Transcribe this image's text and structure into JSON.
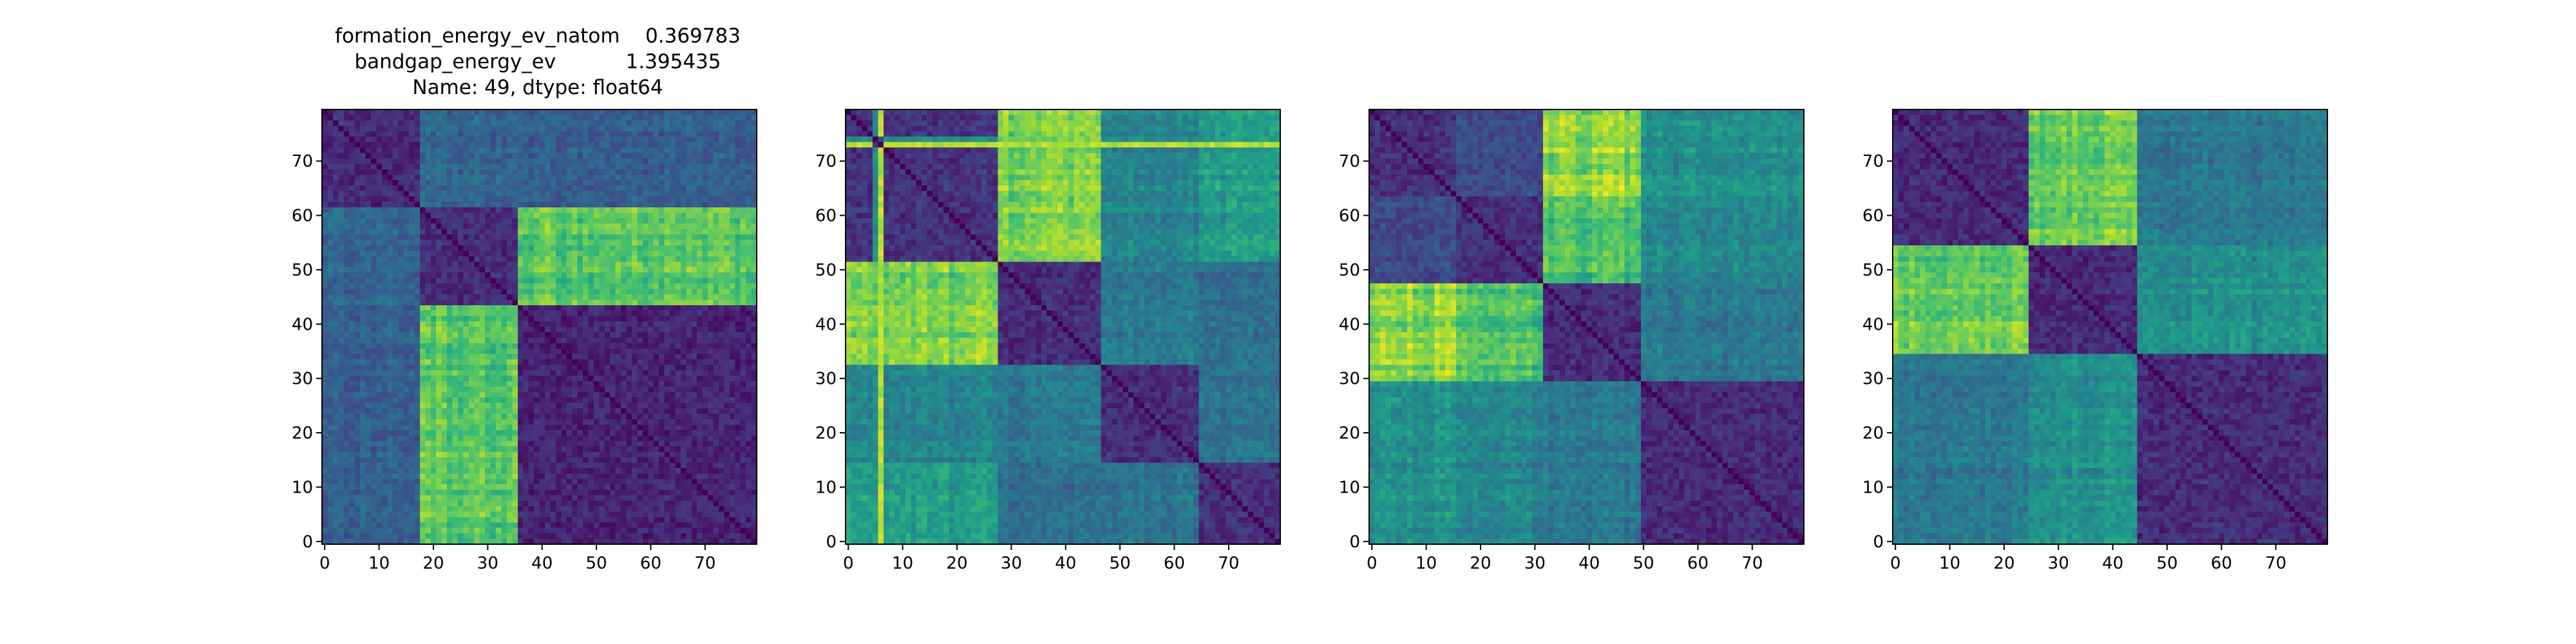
{
  "figure": {
    "title_lines": [
      "formation_energy_ev_natom    0.369783",
      "bandgap_energy_ev           1.395435",
      "Name: 49, dtype: float64"
    ]
  },
  "chart_data": [
    {
      "type": "heatmap",
      "title": "",
      "n": 80,
      "xticks": [
        0,
        10,
        20,
        30,
        40,
        50,
        60,
        70
      ],
      "yticks": [
        0,
        10,
        20,
        30,
        40,
        50,
        60,
        70
      ],
      "xlim": [
        -0.5,
        79.5
      ],
      "ylim": [
        79.5,
        -0.5
      ],
      "colormap": "viridis",
      "blocks": [
        {
          "start": 0,
          "end": 18
        },
        {
          "start": 18,
          "end": 36
        },
        {
          "start": 36,
          "end": 80
        }
      ],
      "block_distance": [
        [
          0.12,
          0.32,
          0.3
        ],
        [
          0.32,
          0.12,
          0.72
        ],
        [
          0.3,
          0.72,
          0.1
        ]
      ],
      "special_rows": []
    },
    {
      "type": "heatmap",
      "title": "",
      "n": 80,
      "xticks": [
        0,
        10,
        20,
        30,
        40,
        50,
        60,
        70
      ],
      "yticks": [
        0,
        10,
        20,
        30,
        40,
        50,
        60,
        70
      ],
      "xlim": [
        -0.5,
        79.5
      ],
      "ylim": [
        79.5,
        -0.5
      ],
      "colormap": "viridis",
      "blocks": [
        {
          "start": 0,
          "end": 28
        },
        {
          "start": 28,
          "end": 47
        },
        {
          "start": 47,
          "end": 65
        },
        {
          "start": 65,
          "end": 80
        }
      ],
      "block_distance": [
        [
          0.14,
          0.78,
          0.45,
          0.55
        ],
        [
          0.78,
          0.12,
          0.4,
          0.35
        ],
        [
          0.45,
          0.4,
          0.13,
          0.38
        ],
        [
          0.55,
          0.35,
          0.38,
          0.13
        ]
      ],
      "special_rows": [
        {
          "index": 6,
          "value": 0.95
        },
        {
          "index": 5,
          "value": 0.55
        }
      ]
    },
    {
      "type": "heatmap",
      "title": "",
      "n": 80,
      "xticks": [
        0,
        10,
        20,
        30,
        40,
        50,
        60,
        70
      ],
      "yticks": [
        0,
        10,
        20,
        30,
        40,
        50,
        60,
        70
      ],
      "xlim": [
        -0.5,
        79.5
      ],
      "ylim": [
        79.5,
        -0.5
      ],
      "colormap": "viridis",
      "blocks": [
        {
          "start": 0,
          "end": 16
        },
        {
          "start": 16,
          "end": 32
        },
        {
          "start": 32,
          "end": 50
        },
        {
          "start": 50,
          "end": 80
        }
      ],
      "block_distance": [
        [
          0.13,
          0.22,
          0.82,
          0.5
        ],
        [
          0.22,
          0.13,
          0.7,
          0.45
        ],
        [
          0.82,
          0.7,
          0.12,
          0.4
        ],
        [
          0.5,
          0.45,
          0.4,
          0.12
        ]
      ],
      "special_rows": []
    },
    {
      "type": "heatmap",
      "title": "",
      "n": 80,
      "xticks": [
        0,
        10,
        20,
        30,
        40,
        50,
        60,
        70
      ],
      "yticks": [
        0,
        10,
        20,
        30,
        40,
        50,
        60,
        70
      ],
      "xlim": [
        -0.5,
        79.5
      ],
      "ylim": [
        79.5,
        -0.5
      ],
      "colormap": "viridis",
      "blocks": [
        {
          "start": 0,
          "end": 25
        },
        {
          "start": 25,
          "end": 45
        },
        {
          "start": 45,
          "end": 80
        }
      ],
      "block_distance": [
        [
          0.12,
          0.78,
          0.4
        ],
        [
          0.78,
          0.12,
          0.5
        ],
        [
          0.4,
          0.5,
          0.12
        ]
      ],
      "special_rows": []
    }
  ]
}
